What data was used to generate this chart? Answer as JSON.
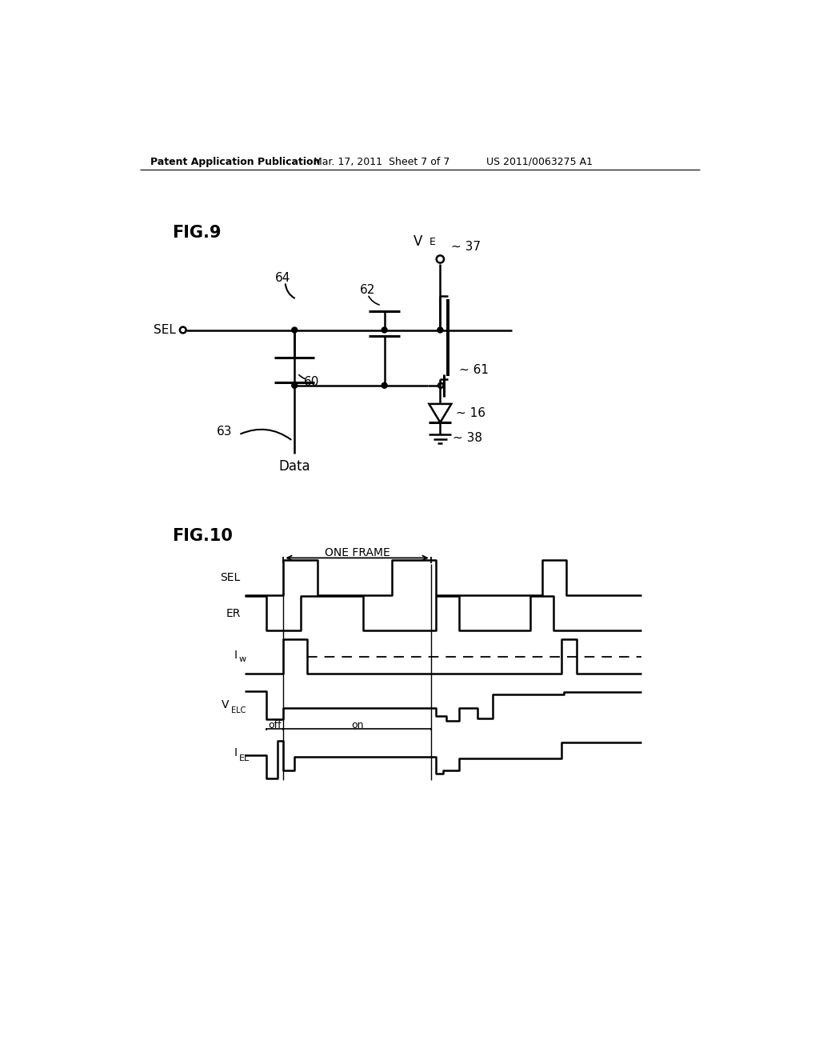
{
  "header_left": "Patent Application Publication",
  "header_mid": "Mar. 17, 2011  Sheet 7 of 7",
  "header_right": "US 2011/0063275 A1",
  "fig9_label": "FIG.9",
  "fig10_label": "FIG.10",
  "bg_color": "#ffffff",
  "line_color": "#000000",
  "text_color": "#000000"
}
